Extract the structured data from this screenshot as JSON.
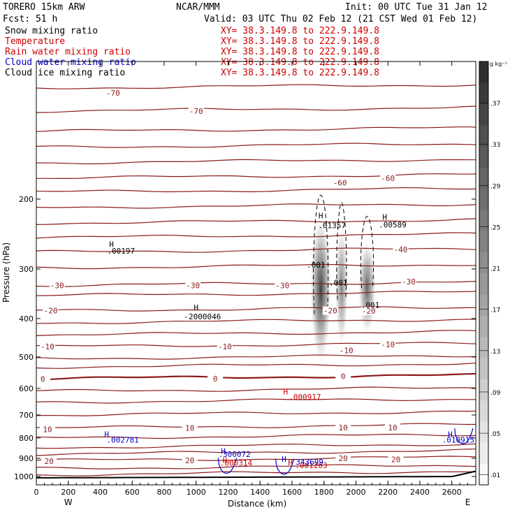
{
  "header": {
    "model": "TORERO  15km ARW",
    "org": "NCAR/MMM",
    "init": "Init: 00 UTC Tue 31 Jan 12",
    "fcst": "Fcst:   51 h",
    "valid": "Valid: 03 UTC Thu 02 Feb 12 (21 CST Wed 01 Feb 12)"
  },
  "fields": [
    {
      "name": "Snow mixing ratio",
      "color": "#000000",
      "xy": "XY=  38.3.149.8 to 222.9.149.8"
    },
    {
      "name": "Temperature",
      "color": "#cc0000",
      "xy": "XY=  38.3.149.8 to 222.9.149.8"
    },
    {
      "name": "Rain water mixing ratio",
      "color": "#cc0000",
      "xy": "XY=  38.3.149.8 to 222.9.149.8"
    },
    {
      "name": "Cloud water mixing ratio",
      "color": "#0000cc",
      "xy": "XY=  38.3.149.8 to 222.9.149.8"
    },
    {
      "name": "Cloud ice mixing ratio",
      "color": "#000000",
      "xy": "XY=  38.3.149.8 to 222.9.149.8"
    }
  ],
  "colors": {
    "temperature": "#8b1a1a",
    "snow": "#000000",
    "rain": "#cc0000",
    "cloud_water": "#0000cc",
    "axis": "#000000"
  },
  "chart_data": {
    "type": "heatmap",
    "xlabel": "Distance (km)",
    "ylabel": "Pressure (hPa)",
    "xlim": [
      0,
      2750
    ],
    "ylim": [
      1050,
      90
    ],
    "y_scale": "log",
    "x_ticks": [
      0,
      200,
      400,
      600,
      800,
      1000,
      1200,
      1400,
      1600,
      1800,
      2000,
      2200,
      2400,
      2600
    ],
    "y_ticks": [
      200,
      300,
      400,
      500,
      600,
      700,
      800,
      900,
      1000
    ],
    "x_end_labels": {
      "left": "W",
      "right": "E"
    },
    "colorbar": {
      "unit": "g kg⁻¹",
      "range": [
        0,
        0.41
      ],
      "tick_labels": [
        ".01",
        ".05",
        ".09",
        ".13",
        ".17",
        ".21",
        ".25",
        ".29",
        ".33",
        ".37"
      ],
      "tick_values": [
        0.01,
        0.05,
        0.09,
        0.13,
        0.17,
        0.21,
        0.25,
        0.29,
        0.33,
        0.37
      ]
    },
    "shaded_cells": [
      {
        "x_center": 1780,
        "x_halfwidth": 45,
        "p_top": 230,
        "p_bottom": 500,
        "max": 0.37
      },
      {
        "x_center": 1910,
        "x_halfwidth": 28,
        "p_top": 240,
        "p_bottom": 460,
        "max": 0.24
      },
      {
        "x_center": 2070,
        "x_halfwidth": 38,
        "p_top": 260,
        "p_bottom": 430,
        "max": 0.3
      }
    ],
    "temperature_labels": [
      {
        "text": "-70",
        "x": 480,
        "p": 108
      },
      {
        "text": "-70",
        "x": 1000,
        "p": 120
      },
      {
        "text": "-60",
        "x": 1900,
        "p": 182
      },
      {
        "text": "-60",
        "x": 2200,
        "p": 177
      },
      {
        "text": "-40",
        "x": 2280,
        "p": 268
      },
      {
        "text": "-30",
        "x": 130,
        "p": 330
      },
      {
        "text": "-30",
        "x": 980,
        "p": 330
      },
      {
        "text": "-30",
        "x": 1540,
        "p": 330
      },
      {
        "text": "-30",
        "x": 2330,
        "p": 323
      },
      {
        "text": "-20",
        "x": 90,
        "p": 382
      },
      {
        "text": "-20",
        "x": 1840,
        "p": 382
      },
      {
        "text": "-20",
        "x": 2080,
        "p": 383
      },
      {
        "text": "-10",
        "x": 70,
        "p": 471
      },
      {
        "text": "-10",
        "x": 1180,
        "p": 471
      },
      {
        "text": "-10",
        "x": 1940,
        "p": 481
      },
      {
        "text": "-10",
        "x": 2200,
        "p": 465
      },
      {
        "text": "0",
        "x": 40,
        "p": 568
      },
      {
        "text": "0",
        "x": 1120,
        "p": 567
      },
      {
        "text": "0",
        "x": 1920,
        "p": 559
      },
      {
        "text": "10",
        "x": 70,
        "p": 761
      },
      {
        "text": "10",
        "x": 960,
        "p": 755
      },
      {
        "text": "10",
        "x": 1920,
        "p": 753
      },
      {
        "text": "10",
        "x": 2230,
        "p": 753
      },
      {
        "text": "20",
        "x": 80,
        "p": 915
      },
      {
        "text": "20",
        "x": 960,
        "p": 912
      },
      {
        "text": "20",
        "x": 1920,
        "p": 900
      },
      {
        "text": "20",
        "x": 2250,
        "p": 905
      }
    ],
    "snow_labels": [
      {
        "text": ".001",
        "x": 1750,
        "p": 293
      },
      {
        "text": ".001",
        "x": 1890,
        "p": 325
      },
      {
        "text": ".001",
        "x": 2090,
        "p": 370
      },
      {
        "text": ".00197",
        "x": 530,
        "p": 270
      },
      {
        "text": ".01357",
        "x": 1850,
        "p": 233
      },
      {
        "text": ".00589",
        "x": 2230,
        "p": 232
      },
      {
        "text": "-2000046",
        "x": 1040,
        "p": 395
      }
    ],
    "rain_labels": [
      {
        "text": ".000917",
        "x": 1680,
        "p": 630
      },
      {
        "text": ".000314",
        "x": 1250,
        "p": 925
      },
      {
        "text": ".001263",
        "x": 1720,
        "p": 937
      }
    ],
    "cloud_water_labels": [
      {
        "text": ".002781",
        "x": 540,
        "p": 808
      },
      {
        "text": ".300072",
        "x": 1240,
        "p": 878
      },
      {
        "text": "343699",
        "x": 1710,
        "p": 918
      },
      {
        "text": ".010915",
        "x": 2640,
        "p": 808
      }
    ],
    "highs": [
      {
        "label": "H",
        "x": 470,
        "p": 260,
        "kind": "snow"
      },
      {
        "label": "H",
        "x": 1000,
        "p": 375,
        "kind": "snow"
      },
      {
        "label": "H",
        "x": 1780,
        "p": 220,
        "kind": "snow"
      },
      {
        "label": "H",
        "x": 2180,
        "p": 222,
        "kind": "snow"
      },
      {
        "label": "H",
        "x": 1560,
        "p": 611,
        "kind": "rain"
      },
      {
        "label": "H",
        "x": 1180,
        "p": 910,
        "kind": "rain"
      },
      {
        "label": "H",
        "x": 1590,
        "p": 922,
        "kind": "rain"
      },
      {
        "label": "H",
        "x": 440,
        "p": 783,
        "kind": "cloud_water"
      },
      {
        "label": "H",
        "x": 1170,
        "p": 862,
        "kind": "cloud_water"
      },
      {
        "label": "H",
        "x": 1550,
        "p": 903,
        "kind": "cloud_water"
      },
      {
        "label": "H",
        "x": 2590,
        "p": 783,
        "kind": "cloud_water"
      }
    ]
  }
}
